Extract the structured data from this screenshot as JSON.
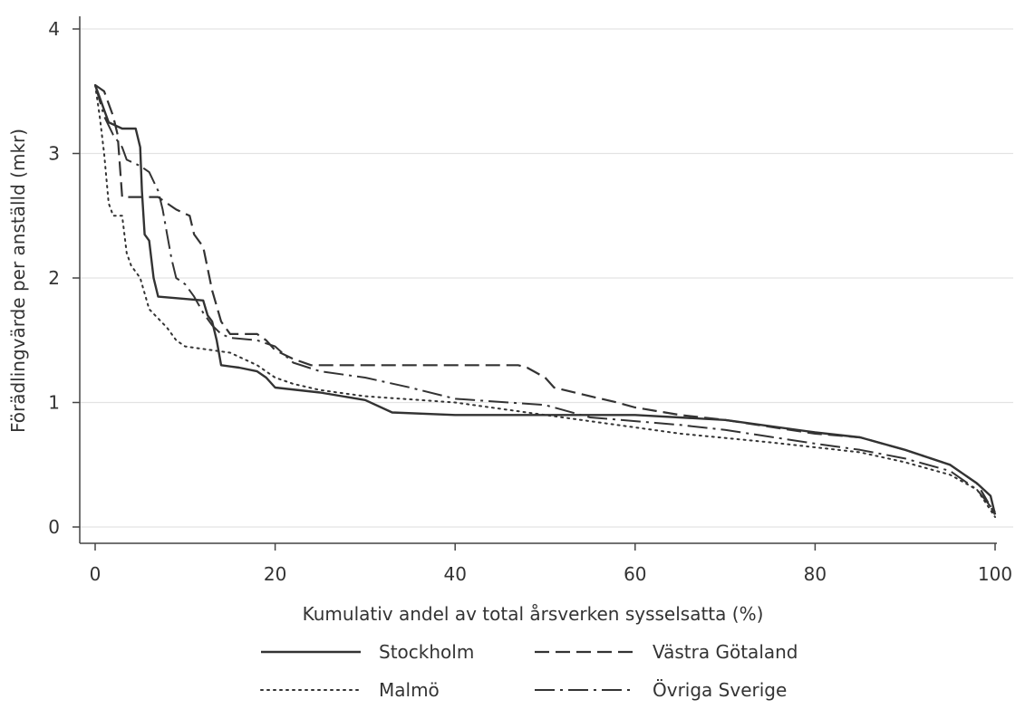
{
  "chart_data": {
    "type": "line",
    "title": "",
    "xlabel": "Kumulativ andel av total årsverken sysselsatta (%)",
    "ylabel": "Förädlingvärde per anställd (mkr)",
    "xlim": [
      0,
      100
    ],
    "ylim": [
      0,
      4
    ],
    "x_ticks": [
      "0",
      "20",
      "40",
      "60",
      "80",
      "100"
    ],
    "y_ticks": [
      "0",
      "1",
      "2",
      "3",
      "4"
    ],
    "grid": "horizontal",
    "legend_position": "bottom",
    "series": [
      {
        "name": "Stockholm",
        "style": "solid",
        "color": "#333333",
        "points": [
          [
            0,
            3.55
          ],
          [
            0.5,
            3.45
          ],
          [
            1,
            3.35
          ],
          [
            1.5,
            3.25
          ],
          [
            3,
            3.2
          ],
          [
            4.5,
            3.2
          ],
          [
            5,
            3.05
          ],
          [
            5.2,
            2.7
          ],
          [
            5.5,
            2.35
          ],
          [
            6,
            2.3
          ],
          [
            6.5,
            2.0
          ],
          [
            7,
            1.85
          ],
          [
            12,
            1.82
          ],
          [
            12.5,
            1.7
          ],
          [
            13,
            1.65
          ],
          [
            13.5,
            1.5
          ],
          [
            14,
            1.3
          ],
          [
            16,
            1.28
          ],
          [
            18,
            1.25
          ],
          [
            19,
            1.2
          ],
          [
            20,
            1.12
          ],
          [
            25,
            1.08
          ],
          [
            30,
            1.02
          ],
          [
            33,
            0.92
          ],
          [
            40,
            0.9
          ],
          [
            50,
            0.9
          ],
          [
            60,
            0.9
          ],
          [
            70,
            0.86
          ],
          [
            80,
            0.76
          ],
          [
            85,
            0.72
          ],
          [
            90,
            0.62
          ],
          [
            95,
            0.5
          ],
          [
            98,
            0.35
          ],
          [
            99.5,
            0.25
          ],
          [
            100,
            0.1
          ]
        ]
      },
      {
        "name": "Västra Götaland",
        "style": "dashed",
        "color": "#333333",
        "points": [
          [
            0,
            3.55
          ],
          [
            1,
            3.5
          ],
          [
            2,
            3.3
          ],
          [
            2.5,
            3.15
          ],
          [
            3,
            2.65
          ],
          [
            7,
            2.65
          ],
          [
            8,
            2.6
          ],
          [
            9,
            2.55
          ],
          [
            10.5,
            2.5
          ],
          [
            11,
            2.35
          ],
          [
            12,
            2.25
          ],
          [
            13,
            1.9
          ],
          [
            14,
            1.65
          ],
          [
            15,
            1.55
          ],
          [
            18,
            1.55
          ],
          [
            19,
            1.5
          ],
          [
            20,
            1.42
          ],
          [
            22,
            1.35
          ],
          [
            24,
            1.3
          ],
          [
            30,
            1.3
          ],
          [
            40,
            1.3
          ],
          [
            47,
            1.3
          ],
          [
            48,
            1.28
          ],
          [
            50,
            1.2
          ],
          [
            51,
            1.12
          ],
          [
            55,
            1.05
          ],
          [
            58,
            1.0
          ],
          [
            60,
            0.96
          ],
          [
            65,
            0.9
          ],
          [
            70,
            0.86
          ],
          [
            80,
            0.75
          ],
          [
            85,
            0.72
          ],
          [
            90,
            0.62
          ],
          [
            95,
            0.5
          ],
          [
            98,
            0.35
          ],
          [
            100,
            0.1
          ]
        ]
      },
      {
        "name": "Malmö",
        "style": "dotted",
        "color": "#333333",
        "points": [
          [
            0,
            3.55
          ],
          [
            0.5,
            3.3
          ],
          [
            1,
            3.0
          ],
          [
            1.5,
            2.6
          ],
          [
            2,
            2.5
          ],
          [
            3,
            2.5
          ],
          [
            3.5,
            2.2
          ],
          [
            4,
            2.1
          ],
          [
            5,
            2.0
          ],
          [
            6,
            1.75
          ],
          [
            8,
            1.6
          ],
          [
            9,
            1.5
          ],
          [
            10,
            1.45
          ],
          [
            15,
            1.4
          ],
          [
            18,
            1.3
          ],
          [
            20,
            1.2
          ],
          [
            22,
            1.15
          ],
          [
            25,
            1.1
          ],
          [
            30,
            1.05
          ],
          [
            40,
            1.0
          ],
          [
            50,
            0.9
          ],
          [
            60,
            0.8
          ],
          [
            65,
            0.75
          ],
          [
            75,
            0.68
          ],
          [
            85,
            0.6
          ],
          [
            90,
            0.52
          ],
          [
            95,
            0.42
          ],
          [
            98,
            0.3
          ],
          [
            100,
            0.08
          ]
        ]
      },
      {
        "name": "Övriga Sverige",
        "style": "dashdot",
        "color": "#333333",
        "points": [
          [
            0,
            3.55
          ],
          [
            1,
            3.3
          ],
          [
            2,
            3.15
          ],
          [
            3,
            3.05
          ],
          [
            3.5,
            2.95
          ],
          [
            5,
            2.9
          ],
          [
            6,
            2.85
          ],
          [
            7,
            2.7
          ],
          [
            7.5,
            2.55
          ],
          [
            8,
            2.35
          ],
          [
            8.5,
            2.15
          ],
          [
            9,
            2.0
          ],
          [
            10,
            1.95
          ],
          [
            11,
            1.85
          ],
          [
            12,
            1.72
          ],
          [
            13,
            1.62
          ],
          [
            14,
            1.55
          ],
          [
            15,
            1.52
          ],
          [
            18,
            1.5
          ],
          [
            20,
            1.45
          ],
          [
            22,
            1.32
          ],
          [
            25,
            1.25
          ],
          [
            30,
            1.2
          ],
          [
            35,
            1.12
          ],
          [
            40,
            1.03
          ],
          [
            50,
            0.98
          ],
          [
            55,
            0.88
          ],
          [
            60,
            0.85
          ],
          [
            65,
            0.82
          ],
          [
            70,
            0.78
          ],
          [
            80,
            0.67
          ],
          [
            85,
            0.62
          ],
          [
            90,
            0.55
          ],
          [
            95,
            0.45
          ],
          [
            98,
            0.3
          ],
          [
            100,
            0.12
          ]
        ]
      }
    ]
  }
}
